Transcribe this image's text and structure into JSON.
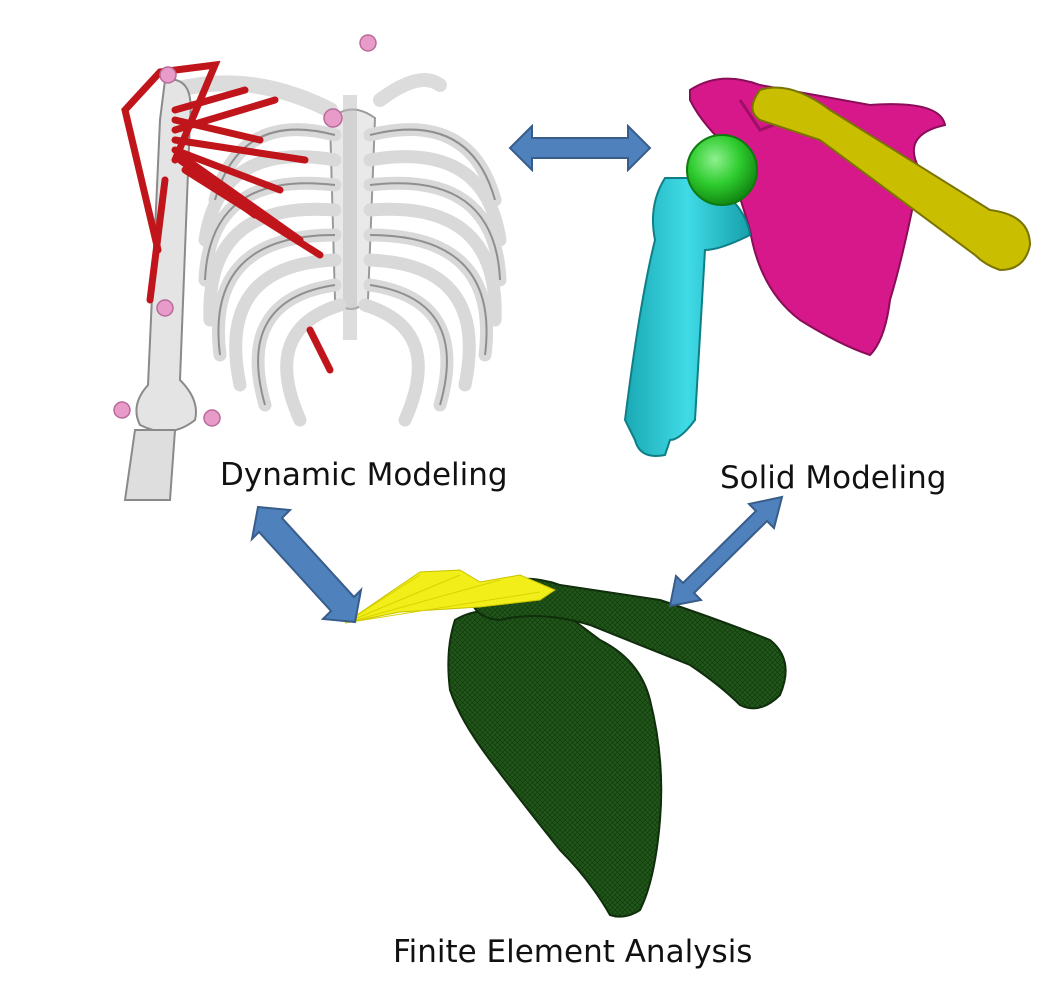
{
  "labels": {
    "dynamic": "Dynamic Modeling",
    "solid": "Solid Modeling",
    "fea": "Finite Element Analysis"
  },
  "colors": {
    "arrow_fill": "#4f81bd",
    "arrow_stroke": "#385d8a",
    "bone_white": "#e6e6e6",
    "muscle_red": "#c0151b",
    "marker_pink": "#e89ac8",
    "scapula_magenta": "#d6188a",
    "clavicle_yellow": "#c9bf00",
    "humerus_cyan": "#22c6d2",
    "head_green": "#2ecc2e",
    "mesh_green": "#1d4d14",
    "muscle_yellow": "#f2ee1a"
  },
  "icons": [
    "ribcage-skeleton-model",
    "shoulder-solid-model",
    "shoulder-fe-mesh-model"
  ]
}
